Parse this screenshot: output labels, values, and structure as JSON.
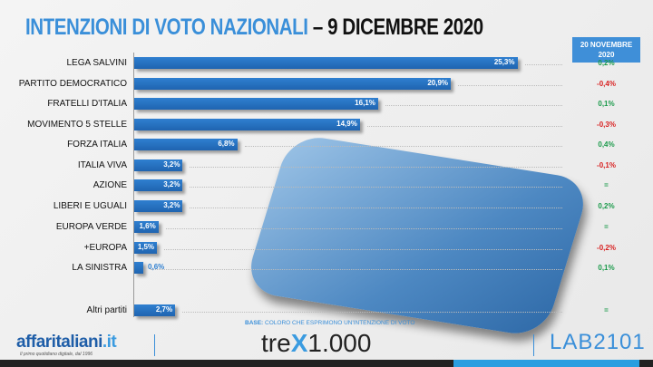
{
  "title": {
    "main": "INTENZIONI DI VOTO NAZIONALI",
    "date": " – 9 DICEMBRE 2020"
  },
  "compare_header": "20 NOVEMBRE 2020",
  "chart_data": {
    "type": "bar",
    "orientation": "horizontal",
    "title": "INTENZIONI DI VOTO NAZIONALI – 9 DICEMBRE 2020",
    "unit": "%",
    "categories": [
      "LEGA SALVINI",
      "PARTITO DEMOCRATICO",
      "FRATELLI D'ITALIA",
      "MOVIMENTO 5 STELLE",
      "FORZA ITALIA",
      "ITALIA VIVA",
      "AZIONE",
      "LIBERI E UGUALI",
      "EUROPA VERDE",
      "+EUROPA",
      "LA SINISTRA",
      "Altri partiti"
    ],
    "values": [
      25.3,
      20.9,
      16.1,
      14.9,
      6.8,
      3.2,
      3.2,
      3.2,
      1.6,
      1.5,
      0.6,
      2.7
    ],
    "labels": [
      "25,3%",
      "20,9%",
      "16,1%",
      "14,9%",
      "6,8%",
      "3,2%",
      "3,2%",
      "3,2%",
      "1,6%",
      "1,5%",
      "0,6%",
      "2,7%"
    ],
    "changes": [
      "0,2%",
      "-0,4%",
      "0,1%",
      "-0,3%",
      "0,4%",
      "-0,1%",
      "=",
      "0,2%",
      "=",
      "-0,2%",
      "0,1%",
      "="
    ],
    "colors": {
      "bar": "#2070c0",
      "positive": "#1a9a4a",
      "negative": "#d81e1e",
      "neutral": "#1a9a4a"
    }
  },
  "base_label": "BASE:",
  "base_text": " COLORO CHE ESPRIMONO UN'INTENZIONE DI VOTO",
  "logos": {
    "affaritaliani": "affaritaliani",
    "affaritaliani_tld": ".it",
    "affaritaliani_sub": "Il primo quotidiano digitale, dal 1996",
    "trex_a": "tre",
    "trex_x": "X",
    "trex_b": "1.000",
    "lab": "LAB2101"
  }
}
